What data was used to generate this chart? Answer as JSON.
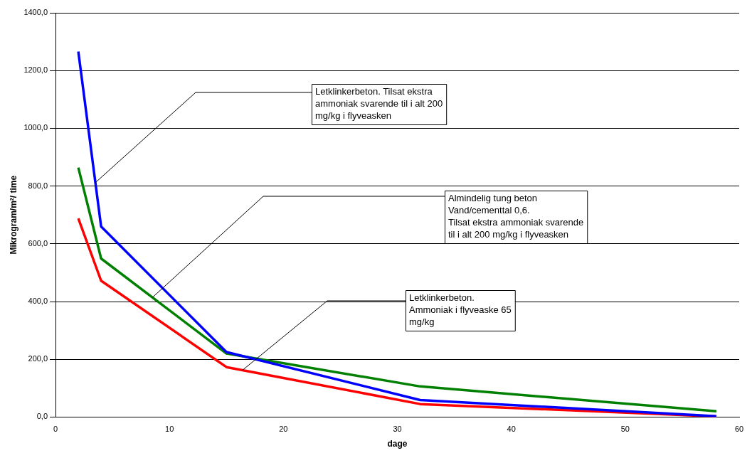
{
  "chart_data": {
    "type": "line",
    "xlabel": "dage",
    "ylabel": "Mikrogram/m²/ time",
    "xlim": [
      0,
      60
    ],
    "xticks": [
      0,
      10,
      20,
      30,
      40,
      50,
      60
    ],
    "ylim": [
      0,
      1400
    ],
    "yticks": [
      {
        "value": 0,
        "label": "0,0"
      },
      {
        "value": 200,
        "label": "200,0"
      },
      {
        "value": 400,
        "label": "400,0"
      },
      {
        "value": 600,
        "label": "600,0"
      },
      {
        "value": 800,
        "label": "800,0"
      },
      {
        "value": 1000,
        "label": "1000,0"
      },
      {
        "value": 1200,
        "label": "1200,0"
      },
      {
        "value": 1400,
        "label": "1400,0"
      }
    ],
    "grid": "y",
    "legend": false,
    "marker": "none",
    "line_style": "solid",
    "x": [
      2,
      4,
      15,
      32,
      58
    ],
    "series": [
      {
        "color": "#0000ff",
        "values": [
          1266,
          660,
          225,
          59,
          3
        ]
      },
      {
        "color": "#008000",
        "values": [
          864,
          549,
          220,
          106,
          20
        ]
      },
      {
        "color": "#ff0000",
        "values": [
          688,
          472,
          173,
          45,
          2
        ]
      }
    ],
    "annotations": [
      {
        "text": "Letklinkerbeton. Tilsat ekstra\nammoniak svarende til i alt 200\nmg/kg i flyveasken",
        "x": 3.5,
        "y": 812
      },
      {
        "text": "Almindelig tung beton\nVand/cementtal 0,6.\nTilsat ekstra ammoniak svarende\ntil i alt 200 mg/kg i flyveasken",
        "x": 8.5,
        "y": 414
      },
      {
        "text": "Letklinkerbeton.\nAmmoniak i flyveaske 65\nmg/kg",
        "x": 16.4,
        "y": 162
      }
    ]
  }
}
